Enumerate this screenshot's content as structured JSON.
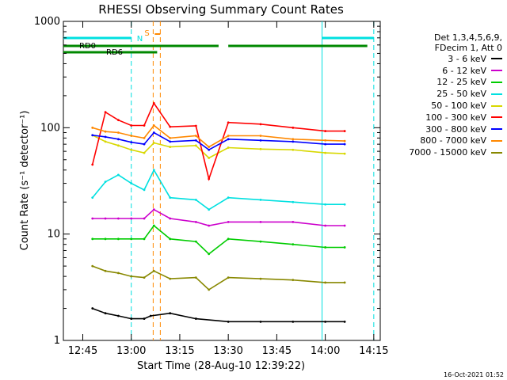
{
  "chart_data": {
    "type": "line",
    "title": "RHESSI Observing Summary Count Rates",
    "xlabel": "Start Time (28-Aug-10 12:39:22)",
    "ylabel": "Count Rate (s⁻¹ detector⁻¹)",
    "yscale": "log",
    "ylim": [
      1,
      1000
    ],
    "xlim": [
      "12:39",
      "14:17"
    ],
    "x_ticks": [
      "12:45",
      "13:00",
      "13:15",
      "13:30",
      "13:45",
      "14:00",
      "14:15"
    ],
    "y_ticks": [
      "1",
      "10",
      "100",
      "1000"
    ],
    "legend_header": [
      "Det 1,3,4,5,6,9,",
      "FDecim 1, Att 0"
    ],
    "legend_placement": "right",
    "series": [
      {
        "name": "3 - 6 keV",
        "color": "#000000",
        "x": [
          "12:48",
          "12:52",
          "12:56",
          "13:00",
          "13:04",
          "13:06",
          "13:12",
          "13:20",
          "13:30",
          "13:40",
          "13:50",
          "14:00",
          "14:06"
        ],
        "values": [
          2.0,
          1.8,
          1.7,
          1.6,
          1.6,
          1.7,
          1.8,
          1.6,
          1.5,
          1.5,
          1.5,
          1.5,
          1.5
        ]
      },
      {
        "name": "6 - 12 keV",
        "color": "#cc00cc",
        "x": [
          "12:48",
          "12:52",
          "12:56",
          "13:00",
          "13:04",
          "13:07",
          "13:12",
          "13:20",
          "13:24",
          "13:30",
          "13:40",
          "13:50",
          "14:00",
          "14:06"
        ],
        "values": [
          14,
          14,
          14,
          14,
          14,
          17,
          14,
          13,
          12,
          13,
          13,
          13,
          12,
          12
        ]
      },
      {
        "name": "12 - 25 keV",
        "color": "#00cc00",
        "x": [
          "12:48",
          "12:52",
          "12:56",
          "13:00",
          "13:04",
          "13:07",
          "13:12",
          "13:20",
          "13:24",
          "13:30",
          "13:40",
          "13:50",
          "14:00",
          "14:06"
        ],
        "values": [
          9,
          9,
          9,
          9,
          9,
          12,
          9,
          8.5,
          6.5,
          9,
          8.5,
          8,
          7.5,
          7.5
        ]
      },
      {
        "name": "25 - 50 keV",
        "color": "#00e0e0",
        "x": [
          "12:48",
          "12:52",
          "12:56",
          "13:00",
          "13:04",
          "13:07",
          "13:12",
          "13:20",
          "13:24",
          "13:30",
          "13:40",
          "13:50",
          "14:00",
          "14:06"
        ],
        "values": [
          22,
          31,
          36,
          30,
          26,
          40,
          22,
          21,
          17,
          22,
          21,
          20,
          19,
          19
        ]
      },
      {
        "name": "50 - 100 keV",
        "color": "#d8d800",
        "x": [
          "12:48",
          "12:52",
          "12:56",
          "13:00",
          "13:04",
          "13:07",
          "13:12",
          "13:20",
          "13:24",
          "13:30",
          "13:40",
          "13:50",
          "14:00",
          "14:06"
        ],
        "values": [
          85,
          74,
          68,
          62,
          58,
          72,
          66,
          68,
          52,
          65,
          63,
          62,
          58,
          57
        ]
      },
      {
        "name": "100 - 300 keV",
        "color": "#ff0000",
        "x": [
          "12:48",
          "12:52",
          "12:56",
          "13:00",
          "13:04",
          "13:07",
          "13:12",
          "13:20",
          "13:24",
          "13:30",
          "13:40",
          "13:50",
          "14:00",
          "14:06"
        ],
        "values": [
          45,
          140,
          118,
          105,
          105,
          170,
          102,
          104,
          33,
          112,
          108,
          100,
          93,
          93
        ]
      },
      {
        "name": "300 - 800 keV",
        "color": "#0000ff",
        "x": [
          "12:48",
          "12:52",
          "12:56",
          "13:00",
          "13:04",
          "13:07",
          "13:12",
          "13:20",
          "13:24",
          "13:30",
          "13:40",
          "13:50",
          "14:00",
          "14:06"
        ],
        "values": [
          85,
          82,
          78,
          73,
          70,
          90,
          74,
          76,
          62,
          78,
          76,
          74,
          70,
          70
        ]
      },
      {
        "name": "800 - 7000 keV",
        "color": "#ff8800",
        "x": [
          "12:48",
          "12:52",
          "12:56",
          "13:00",
          "13:04",
          "13:07",
          "13:12",
          "13:20",
          "13:24",
          "13:30",
          "13:40",
          "13:50",
          "14:00",
          "14:06"
        ],
        "values": [
          100,
          92,
          90,
          84,
          80,
          105,
          80,
          84,
          66,
          84,
          84,
          78,
          76,
          75
        ]
      },
      {
        "name": "7000 - 15000 keV",
        "color": "#888800",
        "x": [
          "12:48",
          "12:52",
          "12:56",
          "13:00",
          "13:04",
          "13:07",
          "13:12",
          "13:20",
          "13:24",
          "13:30",
          "13:40",
          "13:50",
          "14:00",
          "14:06"
        ],
        "values": [
          5,
          4.5,
          4.3,
          4.0,
          3.9,
          4.5,
          3.8,
          3.9,
          3.0,
          3.9,
          3.8,
          3.7,
          3.5,
          3.5
        ]
      }
    ],
    "annotations": [
      {
        "label": "N",
        "color": "#00e0e0",
        "spans": [
          [
            "12:39",
            "13:00"
          ],
          [
            "13:59",
            "14:15"
          ]
        ]
      },
      {
        "label": "S",
        "color": "#ff8800",
        "at": "13:08"
      },
      {
        "label": "RD0",
        "color": "#008800",
        "spans": [
          [
            "12:39",
            "13:27"
          ],
          [
            "13:30",
            "14:13"
          ]
        ]
      },
      {
        "label": "RD6",
        "color": "#008800",
        "spans": [
          [
            "12:39",
            "13:08"
          ]
        ]
      }
    ]
  },
  "timestamp": "16-Oct-2021 01:52"
}
